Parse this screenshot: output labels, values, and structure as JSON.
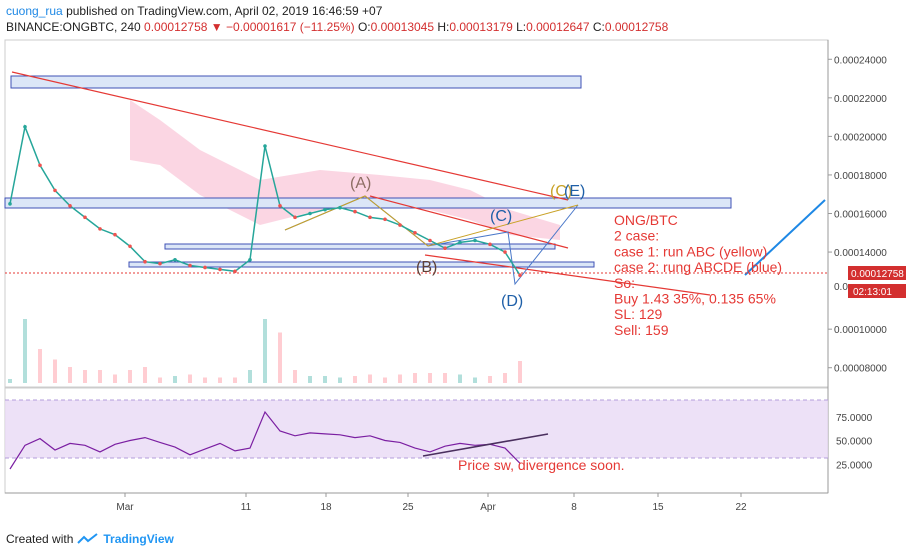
{
  "header": {
    "user": "cuong_rua",
    "published_text": "published on TradingView.com, April 02, 2019 16:46:59 +07",
    "symbol": "BINANCE:ONGBTC, 240",
    "price": "0.00012758",
    "arrow": "▼",
    "change": "−0.00001617 (−11.25%)",
    "o_label": "O:",
    "o_value": "0.00013045",
    "h_label": "H:",
    "h_value": "0.00013179",
    "l_label": "L:",
    "l_value": "0.00012647",
    "c_label": "C:",
    "c_value": "0.00012758"
  },
  "footer": {
    "created_with": "Created with",
    "brand": "TradingView"
  },
  "colors": {
    "up": "#26a69a",
    "down": "#ef5350",
    "accent": "#e53935",
    "blue": "#3f51b5"
  },
  "chart_data": {
    "type": "line",
    "title": "",
    "price_axis": {
      "ticks": [
        "0.00024000",
        "0.00022000",
        "0.00020000",
        "0.00018000",
        "0.00016000",
        "0.00014000",
        "0.00010000",
        "0.00008000"
      ],
      "partial_tick": "0.0",
      "ylim": [
        7e-05,
        0.00025
      ]
    },
    "current_price_label": "0.00012758",
    "countdown_label": "02:13:01",
    "x_ticks": [
      "Mar",
      "11",
      "18",
      "25",
      "Apr",
      "8",
      "15",
      "22"
    ],
    "series": [
      {
        "values": [
          0.000165,
          0.000205,
          0.000185,
          0.000172,
          0.000164,
          0.000158,
          0.000152,
          0.000149,
          0.000143,
          0.000135,
          0.000134,
          0.000136,
          0.000133,
          0.000132,
          0.000131,
          0.00013,
          0.000136,
          0.000195,
          0.000164,
          0.000158,
          0.00016,
          0.000162,
          0.000163,
          0.000161,
          0.000158,
          0.000157,
          0.000154,
          0.00015,
          0.000146,
          0.000142,
          0.000145,
          0.000146,
          0.000144,
          0.00014,
          0.000128
        ]
      }
    ],
    "rsi": {
      "ticks": [
        "75.0000",
        "50.0000",
        "25.0000"
      ],
      "ylim": [
        0,
        100
      ],
      "values": [
        20,
        45,
        52,
        40,
        47,
        45,
        38,
        46,
        50,
        53,
        48,
        43,
        35,
        41,
        47,
        39,
        42,
        80,
        60,
        55,
        58,
        57,
        56,
        53,
        55,
        50,
        48,
        42,
        38,
        44,
        47,
        45,
        46,
        42,
        26
      ]
    },
    "wave_labels": [
      "(A)",
      "(B)",
      "(C)",
      "(D)",
      "(C)",
      "(E)"
    ],
    "annotations": {
      "main": [
        "ONG/BTC",
        "2 case:",
        "case 1: run ABC (yellow)",
        "case 2: rung ABCDE (blue)",
        "So:",
        "Buy 1.43 35%, 0.135 65%",
        "SL: 129",
        "Sell: 159"
      ],
      "rsi_note": "Price sw, divergence soon."
    }
  }
}
